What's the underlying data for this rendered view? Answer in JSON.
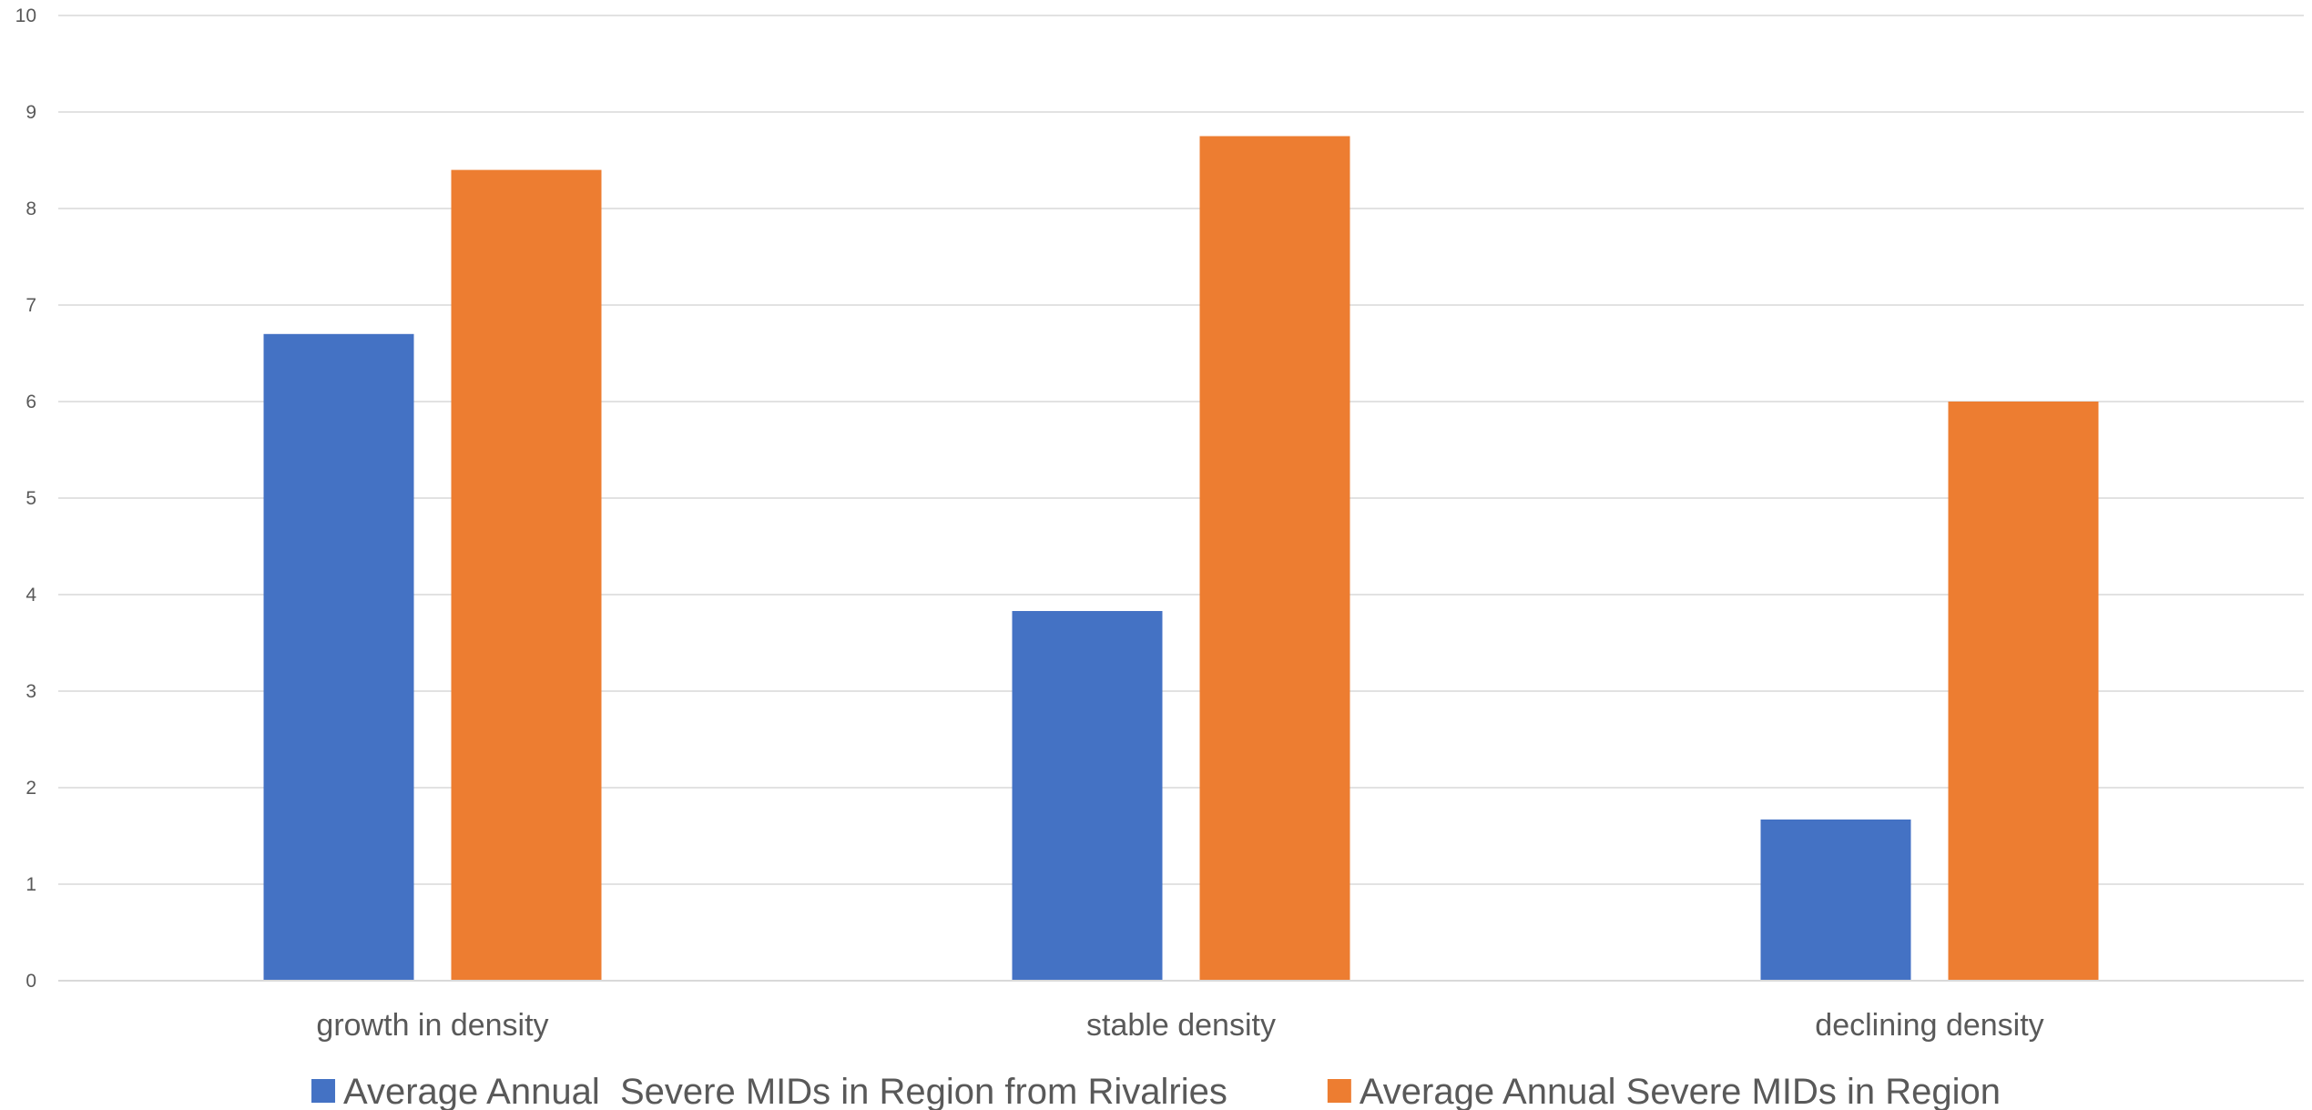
{
  "chart_data": {
    "type": "bar",
    "title": "",
    "xlabel": "",
    "ylabel": "",
    "ylim": [
      0,
      10
    ],
    "yticks": [
      0,
      1,
      2,
      3,
      4,
      5,
      6,
      7,
      8,
      9,
      10
    ],
    "grid": true,
    "legend": "bottom",
    "categories": [
      "growth in density",
      "stable density",
      "declining density"
    ],
    "series": [
      {
        "name": "Average Annual  Severe MIDs in Region from Rivalries",
        "color": "#4472c4",
        "values": [
          6.7,
          3.83,
          1.67
        ]
      },
      {
        "name": "Average Annual Severe MIDs in Region",
        "color": "#ed7d31",
        "values": [
          8.4,
          8.75,
          6.0
        ]
      }
    ]
  }
}
